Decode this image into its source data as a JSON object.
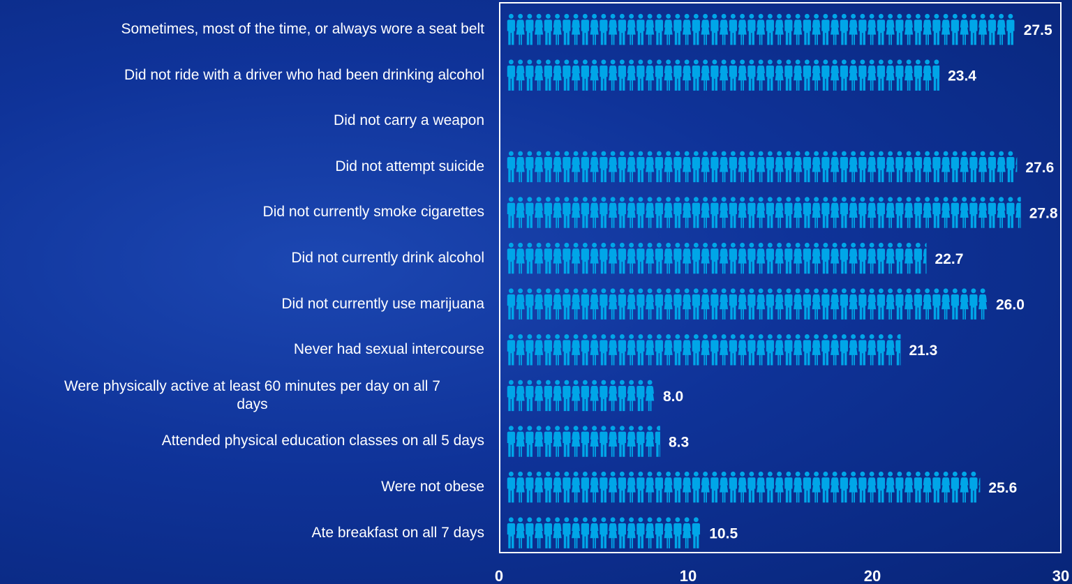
{
  "chart_data": {
    "type": "bar",
    "categories": [
      "Sometimes, most of the time, or always wore a seat belt",
      "Did not ride with a driver who had been drinking alcohol",
      "Did not carry a weapon",
      "Did not attempt suicide",
      "Did not currently smoke cigarettes",
      "Did not currently drink alcohol",
      "Did not currently use marijuana",
      "Never had sexual intercourse",
      "Were physically active at least 60 minutes per day on all 7 days",
      "Attended physical education classes on all 5 days",
      "Were not obese",
      "Ate breakfast on all 7 days"
    ],
    "values": [
      27.5,
      23.4,
      null,
      27.6,
      27.8,
      22.7,
      26.0,
      21.3,
      8.0,
      8.3,
      25.6,
      10.5
    ],
    "value_labels": [
      "27.5",
      "23.4",
      "",
      "27.6",
      "27.8",
      "22.7",
      "26.0",
      "21.3",
      "8.0",
      "8.3",
      "25.6",
      "10.5"
    ],
    "xlim": [
      0,
      30
    ],
    "xticks": [
      0,
      10,
      20,
      30
    ],
    "xtick_labels": [
      "0",
      "10",
      "20",
      "30"
    ],
    "grid": false,
    "title": "",
    "xlabel": "",
    "ylabel": "",
    "bar_style": "pictogram",
    "colors": {
      "pictogram": "#00a6e8",
      "axes": "#ffffff",
      "text": "#ffffff",
      "background": "#0f3399"
    }
  }
}
